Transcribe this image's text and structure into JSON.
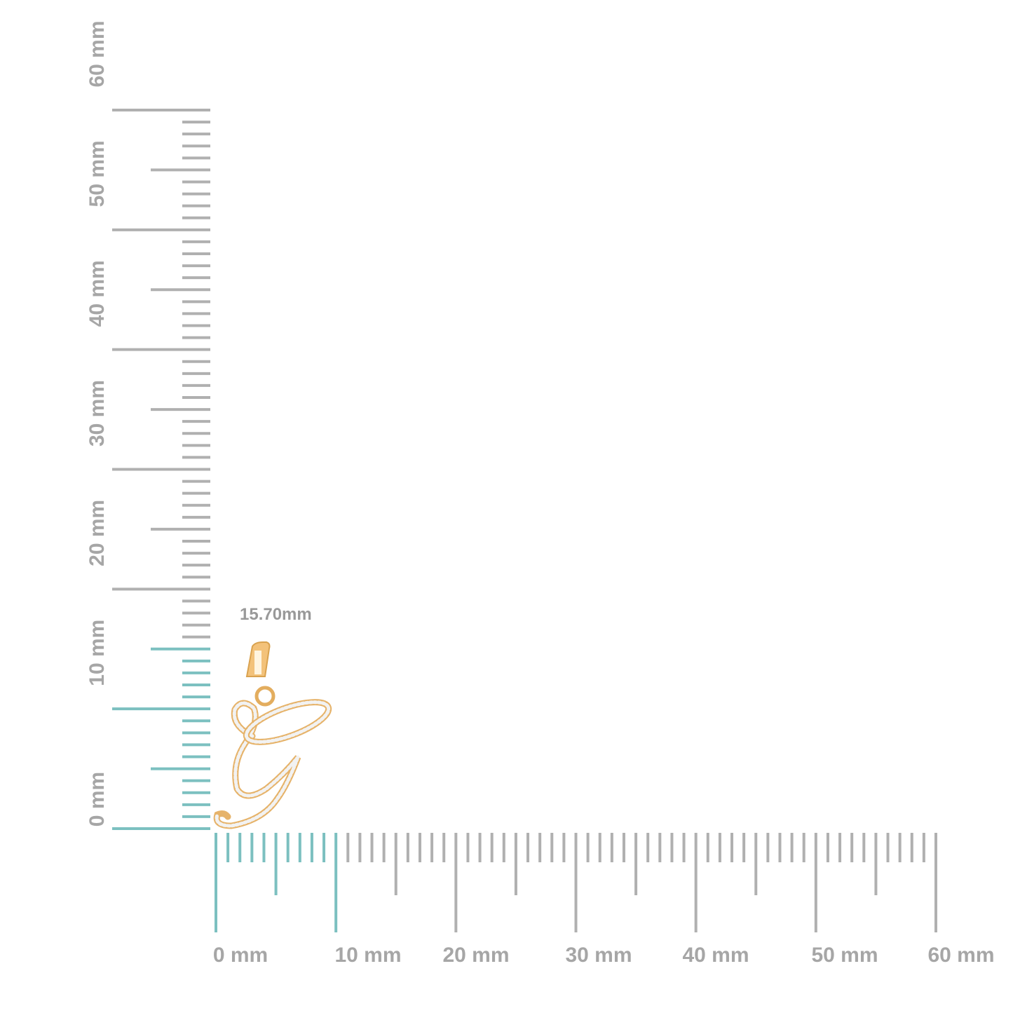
{
  "horizontal_ruler": {
    "labels": [
      "0 mm",
      "10 mm",
      "20 mm",
      "30 mm",
      "40 mm",
      "50 mm",
      "60 mm"
    ]
  },
  "vertical_ruler": {
    "labels": [
      "0 mm",
      "10 mm",
      "20 mm",
      "30 mm",
      "40 mm",
      "50 mm",
      "60 mm"
    ]
  },
  "measurement": "15.70mm"
}
